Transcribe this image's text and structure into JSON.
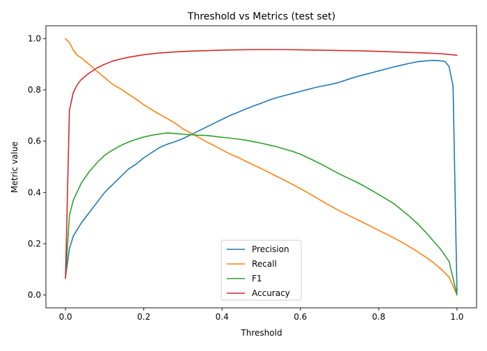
{
  "chart_data": {
    "type": "line",
    "title": "Threshold vs Metrics (test set)",
    "xlabel": "Threshold",
    "ylabel": "Metric value",
    "xlim": [
      -0.05,
      1.05
    ],
    "ylim": [
      -0.05,
      1.05
    ],
    "xticks": [
      0.0,
      0.2,
      0.4,
      0.6,
      0.8,
      1.0
    ],
    "xtick_labels": [
      "0.0",
      "0.2",
      "0.4",
      "0.6",
      "0.8",
      "1.0"
    ],
    "yticks": [
      0.0,
      0.2,
      0.4,
      0.6,
      0.8,
      1.0
    ],
    "ytick_labels": [
      "0.0",
      "0.2",
      "0.4",
      "0.6",
      "0.8",
      "1.0"
    ],
    "grid": false,
    "legend_position": "lower center",
    "series": [
      {
        "name": "Precision",
        "color": "#1f77b4",
        "points": [
          [
            0.0,
            0.07
          ],
          [
            0.01,
            0.18
          ],
          [
            0.02,
            0.23
          ],
          [
            0.04,
            0.28
          ],
          [
            0.06,
            0.32
          ],
          [
            0.08,
            0.36
          ],
          [
            0.1,
            0.4
          ],
          [
            0.12,
            0.43
          ],
          [
            0.14,
            0.46
          ],
          [
            0.16,
            0.49
          ],
          [
            0.18,
            0.51
          ],
          [
            0.2,
            0.535
          ],
          [
            0.22,
            0.555
          ],
          [
            0.24,
            0.575
          ],
          [
            0.26,
            0.588
          ],
          [
            0.28,
            0.598
          ],
          [
            0.3,
            0.61
          ],
          [
            0.32,
            0.625
          ],
          [
            0.34,
            0.64
          ],
          [
            0.36,
            0.655
          ],
          [
            0.38,
            0.67
          ],
          [
            0.4,
            0.685
          ],
          [
            0.42,
            0.7
          ],
          [
            0.44,
            0.712
          ],
          [
            0.46,
            0.725
          ],
          [
            0.48,
            0.737
          ],
          [
            0.5,
            0.748
          ],
          [
            0.52,
            0.76
          ],
          [
            0.54,
            0.77
          ],
          [
            0.56,
            0.778
          ],
          [
            0.58,
            0.786
          ],
          [
            0.6,
            0.794
          ],
          [
            0.62,
            0.802
          ],
          [
            0.64,
            0.81
          ],
          [
            0.66,
            0.816
          ],
          [
            0.68,
            0.822
          ],
          [
            0.7,
            0.83
          ],
          [
            0.72,
            0.84
          ],
          [
            0.74,
            0.85
          ],
          [
            0.76,
            0.858
          ],
          [
            0.78,
            0.866
          ],
          [
            0.8,
            0.874
          ],
          [
            0.82,
            0.882
          ],
          [
            0.84,
            0.89
          ],
          [
            0.86,
            0.897
          ],
          [
            0.88,
            0.904
          ],
          [
            0.9,
            0.91
          ],
          [
            0.92,
            0.913
          ],
          [
            0.94,
            0.915
          ],
          [
            0.96,
            0.913
          ],
          [
            0.97,
            0.91
          ],
          [
            0.98,
            0.89
          ],
          [
            0.99,
            0.815
          ],
          [
            1.0,
            0.01
          ]
        ]
      },
      {
        "name": "Recall",
        "color": "#ff7f0e",
        "points": [
          [
            0.0,
            1.0
          ],
          [
            0.01,
            0.985
          ],
          [
            0.02,
            0.955
          ],
          [
            0.03,
            0.935
          ],
          [
            0.04,
            0.925
          ],
          [
            0.06,
            0.9
          ],
          [
            0.08,
            0.873
          ],
          [
            0.1,
            0.848
          ],
          [
            0.12,
            0.822
          ],
          [
            0.14,
            0.805
          ],
          [
            0.16,
            0.784
          ],
          [
            0.18,
            0.764
          ],
          [
            0.2,
            0.742
          ],
          [
            0.22,
            0.723
          ],
          [
            0.24,
            0.705
          ],
          [
            0.26,
            0.688
          ],
          [
            0.28,
            0.67
          ],
          [
            0.3,
            0.648
          ],
          [
            0.32,
            0.632
          ],
          [
            0.34,
            0.615
          ],
          [
            0.36,
            0.598
          ],
          [
            0.38,
            0.582
          ],
          [
            0.4,
            0.566
          ],
          [
            0.42,
            0.55
          ],
          [
            0.44,
            0.537
          ],
          [
            0.46,
            0.522
          ],
          [
            0.48,
            0.507
          ],
          [
            0.5,
            0.493
          ],
          [
            0.52,
            0.478
          ],
          [
            0.54,
            0.462
          ],
          [
            0.56,
            0.447
          ],
          [
            0.58,
            0.431
          ],
          [
            0.6,
            0.415
          ],
          [
            0.62,
            0.398
          ],
          [
            0.64,
            0.38
          ],
          [
            0.66,
            0.362
          ],
          [
            0.68,
            0.345
          ],
          [
            0.7,
            0.328
          ],
          [
            0.72,
            0.313
          ],
          [
            0.74,
            0.298
          ],
          [
            0.76,
            0.283
          ],
          [
            0.78,
            0.268
          ],
          [
            0.8,
            0.252
          ],
          [
            0.82,
            0.237
          ],
          [
            0.84,
            0.222
          ],
          [
            0.86,
            0.205
          ],
          [
            0.88,
            0.187
          ],
          [
            0.9,
            0.168
          ],
          [
            0.92,
            0.148
          ],
          [
            0.94,
            0.126
          ],
          [
            0.96,
            0.1
          ],
          [
            0.98,
            0.07
          ],
          [
            1.0,
            0.0
          ]
        ]
      },
      {
        "name": "F1",
        "color": "#2ca02c",
        "points": [
          [
            0.0,
            0.065
          ],
          [
            0.01,
            0.31
          ],
          [
            0.02,
            0.37
          ],
          [
            0.04,
            0.435
          ],
          [
            0.06,
            0.48
          ],
          [
            0.08,
            0.515
          ],
          [
            0.1,
            0.545
          ],
          [
            0.12,
            0.565
          ],
          [
            0.14,
            0.582
          ],
          [
            0.16,
            0.596
          ],
          [
            0.18,
            0.607
          ],
          [
            0.2,
            0.616
          ],
          [
            0.22,
            0.623
          ],
          [
            0.24,
            0.628
          ],
          [
            0.26,
            0.632
          ],
          [
            0.28,
            0.63
          ],
          [
            0.3,
            0.627
          ],
          [
            0.32,
            0.625
          ],
          [
            0.34,
            0.623
          ],
          [
            0.36,
            0.622
          ],
          [
            0.38,
            0.619
          ],
          [
            0.4,
            0.615
          ],
          [
            0.42,
            0.612
          ],
          [
            0.44,
            0.608
          ],
          [
            0.46,
            0.604
          ],
          [
            0.48,
            0.598
          ],
          [
            0.5,
            0.592
          ],
          [
            0.52,
            0.585
          ],
          [
            0.54,
            0.578
          ],
          [
            0.56,
            0.569
          ],
          [
            0.58,
            0.56
          ],
          [
            0.6,
            0.549
          ],
          [
            0.62,
            0.535
          ],
          [
            0.64,
            0.52
          ],
          [
            0.66,
            0.505
          ],
          [
            0.68,
            0.488
          ],
          [
            0.7,
            0.472
          ],
          [
            0.72,
            0.457
          ],
          [
            0.74,
            0.443
          ],
          [
            0.76,
            0.427
          ],
          [
            0.78,
            0.41
          ],
          [
            0.8,
            0.392
          ],
          [
            0.82,
            0.374
          ],
          [
            0.84,
            0.355
          ],
          [
            0.86,
            0.33
          ],
          [
            0.88,
            0.305
          ],
          [
            0.9,
            0.277
          ],
          [
            0.92,
            0.245
          ],
          [
            0.94,
            0.21
          ],
          [
            0.96,
            0.175
          ],
          [
            0.98,
            0.13
          ],
          [
            1.0,
            0.0
          ]
        ]
      },
      {
        "name": "Accuracy",
        "color": "#d62728",
        "points": [
          [
            0.0,
            0.065
          ],
          [
            0.01,
            0.72
          ],
          [
            0.02,
            0.79
          ],
          [
            0.03,
            0.82
          ],
          [
            0.04,
            0.84
          ],
          [
            0.06,
            0.865
          ],
          [
            0.08,
            0.885
          ],
          [
            0.1,
            0.9
          ],
          [
            0.12,
            0.912
          ],
          [
            0.14,
            0.92
          ],
          [
            0.16,
            0.927
          ],
          [
            0.18,
            0.932
          ],
          [
            0.2,
            0.937
          ],
          [
            0.24,
            0.944
          ],
          [
            0.28,
            0.948
          ],
          [
            0.32,
            0.951
          ],
          [
            0.36,
            0.953
          ],
          [
            0.4,
            0.955
          ],
          [
            0.44,
            0.956
          ],
          [
            0.48,
            0.957
          ],
          [
            0.52,
            0.957
          ],
          [
            0.56,
            0.957
          ],
          [
            0.6,
            0.956
          ],
          [
            0.64,
            0.955
          ],
          [
            0.68,
            0.954
          ],
          [
            0.72,
            0.953
          ],
          [
            0.76,
            0.952
          ],
          [
            0.8,
            0.95
          ],
          [
            0.84,
            0.948
          ],
          [
            0.88,
            0.946
          ],
          [
            0.92,
            0.944
          ],
          [
            0.96,
            0.941
          ],
          [
            1.0,
            0.935
          ]
        ]
      }
    ]
  }
}
